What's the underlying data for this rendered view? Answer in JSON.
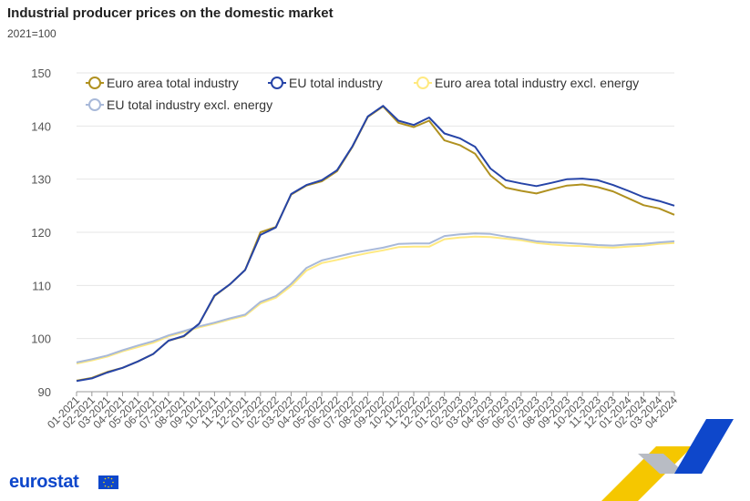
{
  "header": {
    "title": "Industrial producer prices on the domestic market",
    "subtitle": "2021=100"
  },
  "branding": {
    "logo_text": "eurostat",
    "flag_icon": "eu-flag-icon"
  },
  "chart_data": {
    "type": "line",
    "categories": [
      "01-2021",
      "02-2021",
      "03-2021",
      "04-2021",
      "05-2021",
      "06-2021",
      "07-2021",
      "08-2021",
      "09-2021",
      "10-2021",
      "11-2021",
      "12-2021",
      "01-2022",
      "02-2022",
      "03-2022",
      "04-2022",
      "05-2022",
      "06-2022",
      "07-2022",
      "08-2022",
      "09-2022",
      "10-2022",
      "11-2022",
      "12-2022",
      "01-2023",
      "02-2023",
      "03-2023",
      "04-2023",
      "05-2023",
      "06-2023",
      "07-2023",
      "08-2023",
      "09-2023",
      "10-2023",
      "11-2023",
      "12-2023",
      "01-2024",
      "02-2024",
      "03-2024",
      "04-2024"
    ],
    "ylim": [
      90,
      150
    ],
    "yticks": [
      90,
      100,
      110,
      120,
      130,
      140,
      150
    ],
    "grid": true,
    "legend_position": "top-left",
    "series": [
      {
        "name": "Euro area total industry",
        "color": "#b09120",
        "values": [
          92.1,
          92.6,
          93.7,
          94.5,
          95.7,
          97.1,
          99.6,
          100.4,
          102.8,
          108.0,
          110.2,
          112.9,
          120.0,
          121.0,
          127.1,
          128.8,
          129.6,
          131.5,
          136.1,
          141.7,
          143.7,
          140.6,
          139.8,
          141.0,
          137.3,
          136.4,
          134.8,
          130.7,
          128.4,
          127.8,
          127.3,
          128.1,
          128.8,
          129.0,
          128.5,
          127.7,
          126.4,
          125.1,
          124.5,
          123.3
        ]
      },
      {
        "name": "EU total industry",
        "color": "#2644a7",
        "values": [
          92.0,
          92.5,
          93.6,
          94.5,
          95.7,
          97.1,
          99.6,
          100.5,
          102.8,
          108.1,
          110.2,
          112.9,
          119.5,
          120.9,
          127.2,
          128.9,
          129.8,
          131.7,
          136.2,
          141.8,
          143.8,
          141.0,
          140.2,
          141.6,
          138.6,
          137.7,
          136.1,
          132.0,
          129.8,
          129.2,
          128.7,
          129.3,
          130.0,
          130.1,
          129.8,
          128.9,
          127.8,
          126.6,
          125.9,
          125.0
        ]
      },
      {
        "name": "Euro area total industry excl. energy",
        "color": "#ffe980",
        "values": [
          95.3,
          95.9,
          96.6,
          97.6,
          98.4,
          99.2,
          100.4,
          101.2,
          102.1,
          102.8,
          103.6,
          104.3,
          106.6,
          107.7,
          109.9,
          112.8,
          114.2,
          114.8,
          115.5,
          116.1,
          116.6,
          117.2,
          117.3,
          117.3,
          118.7,
          119.0,
          119.2,
          119.1,
          118.8,
          118.5,
          118.0,
          117.7,
          117.5,
          117.4,
          117.2,
          117.1,
          117.3,
          117.5,
          117.8,
          118.0
        ]
      },
      {
        "name": "EU total industry excl. energy",
        "color": "#a8b9d9",
        "values": [
          95.5,
          96.1,
          96.8,
          97.8,
          98.7,
          99.5,
          100.6,
          101.4,
          102.3,
          103.0,
          103.8,
          104.5,
          106.9,
          108.0,
          110.3,
          113.3,
          114.7,
          115.4,
          116.1,
          116.6,
          117.1,
          117.8,
          117.9,
          117.9,
          119.3,
          119.6,
          119.8,
          119.7,
          119.2,
          118.8,
          118.3,
          118.1,
          118.0,
          117.8,
          117.6,
          117.5,
          117.7,
          117.8,
          118.1,
          118.3
        ]
      }
    ]
  }
}
